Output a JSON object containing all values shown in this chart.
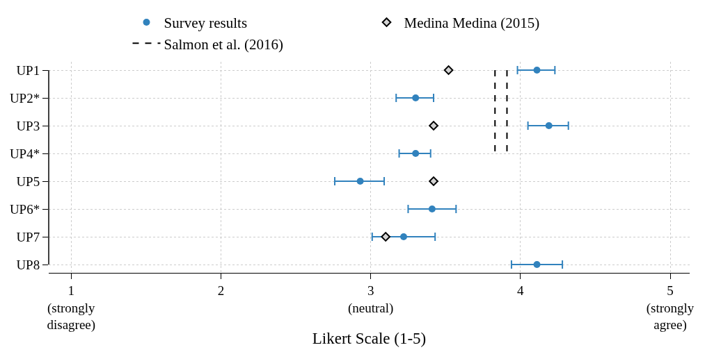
{
  "chart_data": {
    "type": "scatter",
    "orientation": "horizontal",
    "xlabel": "Likert Scale (1-5)",
    "categories": [
      "UP1",
      "UP2*",
      "UP3",
      "UP4*",
      "UP5",
      "UP6*",
      "UP7",
      "UP8"
    ],
    "series": [
      {
        "name": "Survey results",
        "marker": "circle",
        "color": "#3182bd",
        "values": [
          4.11,
          3.3,
          4.19,
          3.3,
          2.93,
          3.41,
          3.22,
          4.11
        ],
        "errors": [
          [
            3.98,
            4.23
          ],
          [
            3.17,
            3.42
          ],
          [
            4.05,
            4.32
          ],
          [
            3.19,
            3.4
          ],
          [
            2.76,
            3.09
          ],
          [
            3.25,
            3.57
          ],
          [
            3.01,
            3.43
          ],
          [
            3.94,
            4.28
          ]
        ]
      },
      {
        "name": "Medina Medina (2015)",
        "marker": "diamond",
        "color": "#d3d3d3",
        "values": [
          3.52,
          null,
          3.42,
          null,
          3.42,
          null,
          3.1,
          null
        ]
      },
      {
        "name": "Salmon et al. (2016)",
        "type": "line",
        "line_style": "dashed",
        "marker": "none",
        "color": "#000000",
        "values": [
          3.83,
          3.83,
          3.83,
          3.83,
          null,
          null,
          null,
          null
        ]
      },
      {
        "type": "line",
        "line_style": "dashed",
        "marker": "none",
        "color": "#000000",
        "values": [
          3.91,
          3.91,
          3.91,
          3.91,
          null,
          null,
          null,
          null
        ]
      }
    ],
    "xlim": [
      0.85,
      5.13
    ],
    "xticks": [
      {
        "value": 1,
        "label": "1\n(strongly\ndisagree)"
      },
      2,
      {
        "value": 3,
        "label": "3\n(neutral)"
      },
      4,
      {
        "value": 5,
        "label": "5\n(strongly\nagree)"
      }
    ],
    "grid": true,
    "legend": "top"
  }
}
